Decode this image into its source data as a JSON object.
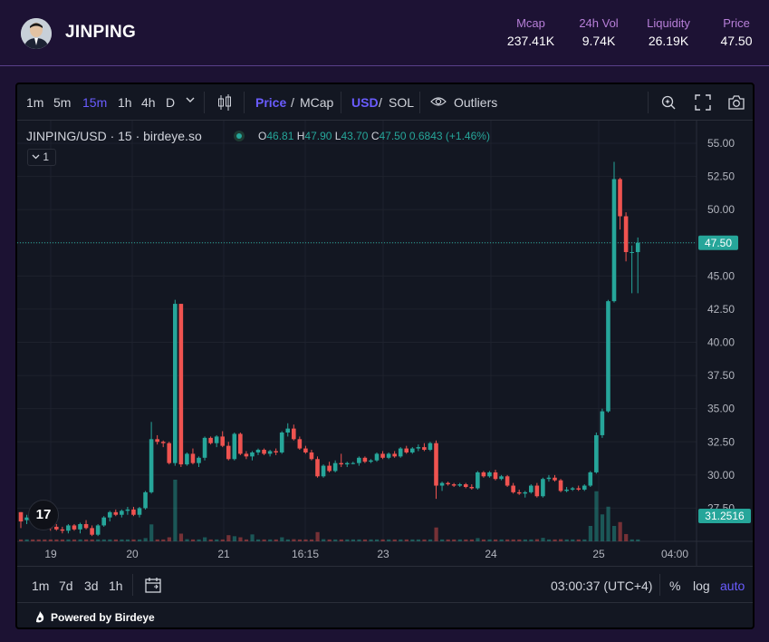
{
  "header": {
    "token_name": "JINPING",
    "stats": [
      {
        "label": "Mcap",
        "value": "237.41K"
      },
      {
        "label": "24h Vol",
        "value": "9.74K"
      },
      {
        "label": "Liquidity",
        "value": "26.19K"
      },
      {
        "label": "Price",
        "value": "47.50"
      }
    ]
  },
  "toolbar": {
    "intervals": [
      "1m",
      "5m",
      "15m",
      "1h",
      "4h",
      "D"
    ],
    "active_interval": "15m",
    "price_label": "Price",
    "mcap_label": "MCap",
    "usd_label": "USD",
    "sol_label": "SOL",
    "slash": "/",
    "outliers_label": "Outliers"
  },
  "legend": {
    "title": "JINPING/USD · 15 · birdeye.so",
    "o_label": "O",
    "o": "46.81",
    "h_label": "H",
    "h": "47.90",
    "l_label": "L",
    "l": "43.70",
    "c_label": "C",
    "c": "47.50",
    "change": "0.6843 (+1.46%)",
    "collapse_count": "1"
  },
  "tv_logo": "17",
  "bottombar": {
    "ranges": [
      "1m",
      "7d",
      "3d",
      "1h"
    ],
    "clock": "03:00:37 (UTC+4)",
    "percent_label": "%",
    "log_label": "log",
    "auto_label": "auto"
  },
  "footer": {
    "powered": "Powered by Birdeye"
  },
  "colors": {
    "up": "#26a69a",
    "down": "#ef5350",
    "accent": "#6a5cff",
    "stat_label": "#b77fd8"
  },
  "chart_data": {
    "type": "candlestick",
    "y_ticks": [
      "55.00",
      "52.50",
      "50.00",
      "47.50",
      "45.00",
      "42.50",
      "40.00",
      "37.50",
      "35.00",
      "32.50",
      "30.00",
      "27.50"
    ],
    "y_range": [
      25.0,
      56.3
    ],
    "x_ticks": [
      "19",
      "20",
      "21",
      "16:15",
      "23",
      "24",
      "25",
      "04:00"
    ],
    "last_price_label": "47.50",
    "volume_label": "31.2516",
    "candles": [
      [
        27.2,
        27.2,
        26.0,
        26.5
      ],
      [
        26.6,
        27.0,
        26.3,
        26.8
      ],
      [
        26.8,
        27.0,
        26.4,
        26.5
      ],
      [
        26.5,
        26.8,
        26.1,
        26.3
      ],
      [
        26.3,
        26.6,
        25.9,
        26.2
      ],
      [
        26.2,
        26.5,
        25.8,
        26.0
      ],
      [
        26.1,
        26.3,
        25.8,
        25.9
      ],
      [
        25.9,
        26.1,
        25.6,
        25.8
      ],
      [
        25.8,
        26.3,
        25.6,
        26.2
      ],
      [
        26.2,
        26.3,
        25.8,
        25.9
      ],
      [
        25.9,
        26.4,
        25.6,
        26.3
      ],
      [
        26.3,
        26.6,
        25.9,
        26.0
      ],
      [
        26.0,
        26.2,
        25.4,
        25.5
      ],
      [
        25.5,
        26.3,
        25.4,
        26.2
      ],
      [
        26.2,
        26.9,
        26.1,
        26.8
      ],
      [
        26.8,
        27.3,
        26.5,
        27.2
      ],
      [
        27.2,
        27.4,
        26.9,
        27.0
      ],
      [
        27.0,
        27.4,
        26.8,
        27.3
      ],
      [
        27.3,
        27.6,
        27.0,
        27.4
      ],
      [
        27.4,
        27.6,
        26.9,
        27.0
      ],
      [
        27.0,
        27.6,
        26.8,
        27.5
      ],
      [
        27.5,
        28.8,
        27.4,
        28.7
      ],
      [
        28.7,
        34.0,
        28.6,
        32.7
      ],
      [
        32.7,
        33.0,
        32.3,
        32.5
      ],
      [
        32.5,
        32.6,
        32.1,
        32.4
      ],
      [
        32.4,
        32.5,
        30.8,
        30.9
      ],
      [
        30.9,
        43.2,
        30.7,
        42.9
      ],
      [
        42.9,
        42.9,
        30.6,
        30.8
      ],
      [
        30.8,
        31.7,
        30.7,
        31.6
      ],
      [
        31.6,
        32.0,
        30.8,
        30.9
      ],
      [
        30.9,
        31.4,
        30.6,
        31.3
      ],
      [
        31.3,
        32.9,
        31.1,
        32.8
      ],
      [
        32.8,
        32.9,
        32.3,
        32.4
      ],
      [
        32.4,
        33.0,
        32.1,
        32.9
      ],
      [
        32.9,
        33.3,
        32.1,
        32.2
      ],
      [
        32.2,
        32.5,
        31.1,
        31.2
      ],
      [
        31.2,
        33.2,
        31.1,
        33.1
      ],
      [
        33.1,
        33.2,
        31.5,
        31.6
      ],
      [
        31.6,
        31.8,
        31.2,
        31.4
      ],
      [
        31.4,
        31.8,
        31.1,
        31.7
      ],
      [
        31.7,
        32.0,
        31.5,
        31.9
      ],
      [
        31.9,
        32.0,
        31.5,
        31.6
      ],
      [
        31.6,
        31.9,
        31.4,
        31.8
      ],
      [
        31.8,
        32.0,
        31.5,
        31.7
      ],
      [
        31.7,
        33.3,
        31.6,
        33.2
      ],
      [
        33.2,
        33.9,
        32.9,
        33.5
      ],
      [
        33.5,
        33.8,
        32.6,
        32.7
      ],
      [
        32.7,
        32.9,
        31.9,
        32.0
      ],
      [
        32.0,
        32.2,
        31.6,
        31.7
      ],
      [
        31.7,
        31.9,
        31.1,
        31.2
      ],
      [
        31.2,
        31.4,
        29.8,
        29.9
      ],
      [
        29.9,
        30.8,
        29.8,
        30.7
      ],
      [
        30.7,
        31.0,
        30.2,
        30.3
      ],
      [
        30.3,
        31.1,
        30.2,
        30.9
      ],
      [
        30.9,
        31.6,
        30.6,
        30.8
      ],
      [
        30.8,
        31.0,
        30.6,
        30.9
      ],
      [
        30.9,
        31.0,
        30.8,
        30.9
      ],
      [
        30.9,
        31.4,
        30.7,
        31.3
      ],
      [
        31.3,
        31.4,
        30.9,
        31.0
      ],
      [
        31.0,
        31.2,
        30.9,
        31.1
      ],
      [
        31.1,
        31.7,
        31.0,
        31.6
      ],
      [
        31.6,
        31.8,
        31.2,
        31.3
      ],
      [
        31.3,
        31.7,
        31.2,
        31.6
      ],
      [
        31.6,
        31.8,
        31.3,
        31.4
      ],
      [
        31.4,
        32.1,
        31.3,
        32.0
      ],
      [
        32.0,
        32.2,
        31.6,
        31.7
      ],
      [
        31.7,
        32.1,
        31.6,
        32.0
      ],
      [
        32.0,
        32.3,
        31.8,
        32.1
      ],
      [
        32.1,
        32.4,
        31.8,
        31.9
      ],
      [
        31.9,
        32.5,
        31.8,
        32.4
      ],
      [
        32.4,
        32.6,
        28.2,
        29.2
      ],
      [
        29.2,
        29.5,
        28.8,
        29.4
      ],
      [
        29.4,
        29.5,
        29.2,
        29.3
      ],
      [
        29.3,
        29.4,
        29.1,
        29.2
      ],
      [
        29.2,
        29.4,
        29.1,
        29.3
      ],
      [
        29.3,
        29.4,
        29.0,
        29.1
      ],
      [
        29.1,
        29.3,
        28.9,
        29.0
      ],
      [
        29.0,
        30.3,
        28.9,
        30.2
      ],
      [
        30.2,
        30.3,
        29.8,
        29.9
      ],
      [
        29.9,
        30.3,
        29.8,
        30.2
      ],
      [
        30.2,
        30.4,
        29.6,
        29.7
      ],
      [
        29.7,
        30.0,
        29.6,
        29.9
      ],
      [
        29.9,
        30.0,
        29.1,
        29.2
      ],
      [
        29.2,
        29.4,
        28.6,
        28.7
      ],
      [
        28.7,
        28.9,
        28.5,
        28.6
      ],
      [
        28.6,
        28.8,
        28.3,
        28.7
      ],
      [
        28.7,
        29.3,
        28.6,
        29.2
      ],
      [
        29.2,
        29.4,
        28.3,
        28.4
      ],
      [
        28.4,
        29.8,
        28.3,
        29.7
      ],
      [
        29.7,
        30.0,
        29.5,
        29.8
      ],
      [
        29.8,
        30.0,
        29.5,
        29.6
      ],
      [
        29.6,
        29.7,
        28.7,
        28.8
      ],
      [
        28.8,
        29.1,
        28.7,
        28.9
      ],
      [
        28.9,
        29.1,
        28.8,
        29.0
      ],
      [
        29.0,
        29.2,
        28.8,
        28.9
      ],
      [
        28.9,
        29.3,
        28.8,
        29.2
      ],
      [
        29.2,
        30.3,
        29.1,
        30.2
      ],
      [
        30.2,
        33.2,
        30.1,
        33.0
      ],
      [
        33.0,
        35.0,
        32.8,
        34.8
      ],
      [
        34.8,
        43.2,
        34.7,
        43.1
      ],
      [
        43.1,
        53.6,
        43.0,
        52.3
      ],
      [
        52.3,
        52.4,
        48.5,
        49.5
      ],
      [
        49.5,
        49.8,
        46.1,
        46.8
      ],
      [
        46.8,
        47.3,
        43.7,
        46.8
      ],
      [
        46.8,
        47.9,
        43.7,
        47.5
      ]
    ],
    "volume_markers": [
      [
        22,
        "up",
        2.2
      ],
      [
        26,
        "up",
        8.0
      ],
      [
        96,
        "up",
        2.0
      ],
      [
        97,
        "up",
        6.5
      ],
      [
        98,
        "up",
        3.5
      ],
      [
        99,
        "up",
        4.5
      ],
      [
        100,
        "down",
        2.0
      ],
      [
        101,
        "up",
        2.5
      ],
      [
        50,
        "down",
        1.2
      ],
      [
        70,
        "down",
        1.8
      ],
      [
        35,
        "down",
        0.8
      ],
      [
        39,
        "down",
        0.9
      ],
      [
        27,
        "down",
        1.0
      ]
    ]
  }
}
